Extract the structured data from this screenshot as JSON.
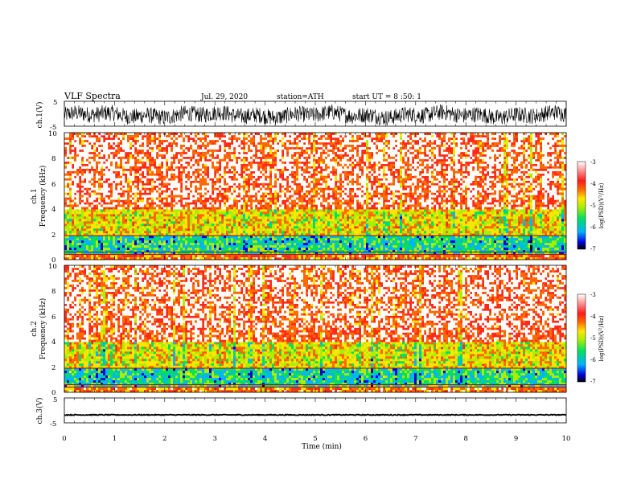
{
  "header": {
    "title": "VLF  Spectra",
    "date": "Jul.  29,  2020",
    "station": "station=ATH",
    "start_ut": "start  UT  =   8  :50: 1"
  },
  "chart_data": {
    "type": "heatmap",
    "x": {
      "label": "Time  (min)",
      "lim": [
        0,
        10
      ],
      "ticks": [
        "0",
        "1",
        "2",
        "3",
        "4",
        "5",
        "6",
        "7",
        "8",
        "9",
        "10"
      ]
    },
    "panels": {
      "ch1_wave": {
        "label": "ch.1(V)",
        "ylim": [
          -5,
          5
        ],
        "ticks": [
          "5",
          "-5"
        ]
      },
      "ch1_spec": {
        "label_line1": "ch.1",
        "label_line2": "Frequency  (kHz)",
        "ylim": [
          0,
          10
        ],
        "ticks": [
          "0",
          "2",
          "4",
          "6",
          "8",
          "10"
        ]
      },
      "ch2_spec": {
        "label_line1": "ch.2",
        "label_line2": "Frequency  (kHz)",
        "ylim": [
          0,
          10
        ],
        "ticks": [
          "0",
          "2",
          "4",
          "6",
          "8",
          "10"
        ]
      },
      "ch3_wave": {
        "label": "ch.3(V)",
        "ylim": [
          -5,
          5
        ],
        "ticks": [
          "5",
          "-5"
        ]
      }
    },
    "colorbar": {
      "label": "log(PSD)(V²/Hz)",
      "range": [
        -7,
        -3
      ],
      "ticks": [
        "-3",
        "-4",
        "-5",
        "-6",
        "-7"
      ],
      "colormap": [
        "#000000",
        "#0000e0",
        "#00b4ff",
        "#00e060",
        "#aaee00",
        "#ffe600",
        "#ff6a00",
        "#ff1a1a",
        "#ffffff"
      ]
    },
    "spectrogram_profile": [
      {
        "f_khz": [
          0.0,
          0.4
        ],
        "log_psd_approx": -4.0
      },
      {
        "f_khz": [
          0.4,
          1.8
        ],
        "log_psd_approx": -5.5
      },
      {
        "f_khz": [
          1.8,
          4.0
        ],
        "log_psd_approx": -4.6
      },
      {
        "f_khz": [
          4.0,
          10.0
        ],
        "log_psd_approx": -3.6
      }
    ],
    "ch1_wave_amplitude_v": [
      -3,
      2
    ],
    "ch3_wave_level_v": -1.8
  }
}
